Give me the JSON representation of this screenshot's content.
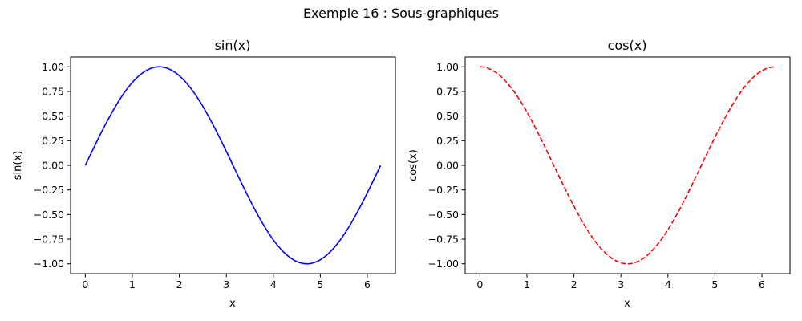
{
  "figure": {
    "suptitle": "Exemple 16 : Sous-graphiques"
  },
  "chart_data": [
    {
      "type": "line",
      "title": "sin(x)",
      "xlabel": "x",
      "ylabel": "sin(x)",
      "function": "sin",
      "x_range": [
        0,
        6.283
      ],
      "xlim": [
        -0.314,
        6.597
      ],
      "ylim": [
        -1.1,
        1.1
      ],
      "xticks": [
        0,
        1,
        2,
        3,
        4,
        5,
        6
      ],
      "xtick_labels": [
        "0",
        "1",
        "2",
        "3",
        "4",
        "5",
        "6"
      ],
      "yticks": [
        -1.0,
        -0.75,
        -0.5,
        -0.25,
        0.0,
        0.25,
        0.5,
        0.75,
        1.0
      ],
      "ytick_labels": [
        "−1.00",
        "−0.75",
        "−0.50",
        "−0.25",
        "0.00",
        "0.25",
        "0.50",
        "0.75",
        "1.00"
      ],
      "color": "#0000ff",
      "linestyle": "solid",
      "grid": false,
      "legend": false
    },
    {
      "type": "line",
      "title": "cos(x)",
      "xlabel": "x",
      "ylabel": "cos(x)",
      "function": "cos",
      "x_range": [
        0,
        6.283
      ],
      "xlim": [
        -0.314,
        6.597
      ],
      "ylim": [
        -1.1,
        1.1
      ],
      "xticks": [
        0,
        1,
        2,
        3,
        4,
        5,
        6
      ],
      "xtick_labels": [
        "0",
        "1",
        "2",
        "3",
        "4",
        "5",
        "6"
      ],
      "yticks": [
        -1.0,
        -0.75,
        -0.5,
        -0.25,
        0.0,
        0.25,
        0.5,
        0.75,
        1.0
      ],
      "ytick_labels": [
        "−1.00",
        "−0.75",
        "−0.50",
        "−0.25",
        "0.00",
        "0.25",
        "0.50",
        "0.75",
        "1.00"
      ],
      "color": "#ff0000",
      "linestyle": "dashed",
      "grid": false,
      "legend": false
    }
  ]
}
